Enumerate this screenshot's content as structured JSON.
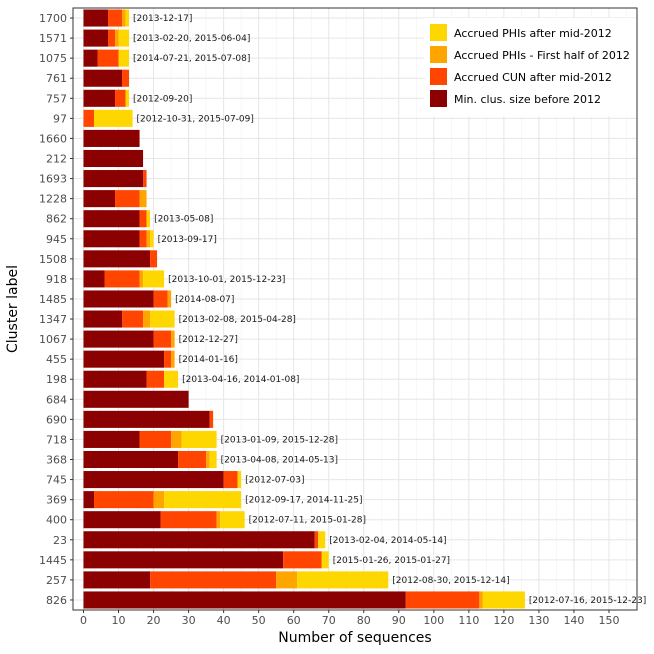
{
  "chart_data": {
    "type": "bar",
    "orientation": "horizontal",
    "stacked": true,
    "xlabel": "Number of sequences",
    "ylabel": "Cluster label",
    "xlim": [
      -3,
      158
    ],
    "xticks": [
      0,
      10,
      20,
      30,
      40,
      50,
      60,
      70,
      80,
      90,
      100,
      110,
      120,
      130,
      140,
      150
    ],
    "grid": true,
    "legend_position": "top-right",
    "categories": [
      "1700",
      "1571",
      "1075",
      "761",
      "757",
      "97",
      "1660",
      "212",
      "1693",
      "1228",
      "862",
      "945",
      "1508",
      "918",
      "1485",
      "1347",
      "1067",
      "455",
      "198",
      "684",
      "690",
      "718",
      "368",
      "745",
      "369",
      "400",
      "23",
      "1445",
      "257",
      "826"
    ],
    "series": [
      {
        "name": "Min. clus. size before 2012",
        "color": "#8b0000",
        "values": [
          7,
          7,
          4,
          11,
          9,
          0,
          16,
          17,
          17,
          9,
          16,
          16,
          19,
          6,
          20,
          11,
          20,
          23,
          18,
          30,
          36,
          16,
          27,
          40,
          3,
          22,
          66,
          57,
          19,
          92
        ]
      },
      {
        "name": "Accrued CUN after mid-2012",
        "color": "#ff4500",
        "values": [
          4,
          2,
          6,
          2,
          3,
          3,
          0,
          0,
          1,
          7,
          2,
          2,
          2,
          10,
          4,
          6,
          5,
          2,
          5,
          0,
          1,
          9,
          8,
          4,
          17,
          16,
          1,
          11,
          36,
          21
        ]
      },
      {
        "name": "Accrued PHIs - First half of 2012",
        "color": "#ffa500",
        "values": [
          1,
          1,
          0,
          0,
          0,
          0,
          0,
          0,
          0,
          2,
          0,
          1,
          0,
          1,
          1,
          2,
          1,
          1,
          0,
          0,
          0,
          3,
          1,
          0,
          3,
          1,
          0,
          0,
          6,
          1
        ]
      },
      {
        "name": "Accrued PHIs after mid-2012",
        "color": "#ffd700",
        "values": [
          1,
          3,
          3,
          0,
          1,
          11,
          0,
          0,
          0,
          0,
          1,
          1,
          0,
          6,
          0,
          7,
          0,
          0,
          4,
          0,
          0,
          10,
          2,
          1,
          22,
          7,
          2,
          2,
          26,
          12
        ]
      }
    ],
    "annotations": [
      "[2013-12-17]",
      "[2013-02-20, 2015-06-04]",
      "[2014-07-21, 2015-07-08]",
      "",
      "[2012-09-20]",
      "[2012-10-31, 2015-07-09]",
      "",
      "",
      "",
      "",
      "[2013-05-08]",
      "[2013-09-17]",
      "",
      "[2013-10-01, 2015-12-23]",
      "[2014-08-07]",
      "[2013-02-08, 2015-04-28]",
      "[2012-12-27]",
      "[2014-01-16]",
      "[2013-04-16, 2014-01-08]",
      "",
      "",
      "[2013-01-09, 2015-12-28]",
      "[2013-04-08, 2014-05-13]",
      "[2012-07-03]",
      "[2012-09-17, 2014-11-25]",
      "[2012-07-11, 2015-01-28]",
      "[2013-02-04, 2014-05-14]",
      "[2015-01-26, 2015-01-27]",
      "[2012-08-30, 2015-12-14]",
      "[2012-07-16, 2015-12-23]"
    ],
    "legend_entries": [
      "Accrued PHIs after mid-2012",
      "Accrued PHIs - First half of 2012",
      "Accrued CUN after mid-2012",
      "Min. clus. size before 2012"
    ]
  }
}
